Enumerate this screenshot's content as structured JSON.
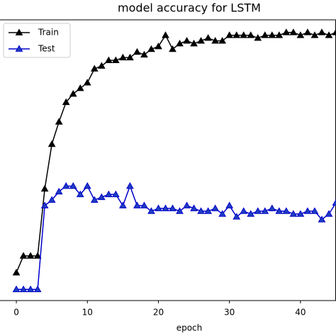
{
  "chart_data": {
    "type": "line",
    "title": "model accuracy for LSTM",
    "x_label": "epoch",
    "x": [
      0,
      1,
      2,
      3,
      4,
      5,
      6,
      7,
      8,
      9,
      10,
      11,
      12,
      13,
      14,
      15,
      16,
      17,
      18,
      19,
      20,
      21,
      22,
      23,
      24,
      25,
      26,
      27,
      28,
      29,
      30,
      31,
      32,
      33,
      34,
      35,
      36,
      37,
      38,
      39,
      40,
      41,
      42,
      43,
      44,
      45
    ],
    "series": [
      {
        "name": "Train",
        "color": "#000000",
        "values": [
          0.1,
          0.16,
          0.16,
          0.16,
          0.4,
          0.56,
          0.64,
          0.71,
          0.74,
          0.76,
          0.78,
          0.83,
          0.84,
          0.86,
          0.86,
          0.87,
          0.87,
          0.89,
          0.88,
          0.9,
          0.91,
          0.95,
          0.9,
          0.92,
          0.93,
          0.92,
          0.93,
          0.94,
          0.93,
          0.93,
          0.95,
          0.95,
          0.95,
          0.95,
          0.94,
          0.95,
          0.95,
          0.95,
          0.96,
          0.96,
          0.95,
          0.96,
          0.95,
          0.96,
          0.95,
          0.96
        ]
      },
      {
        "name": "Test",
        "color": "#0000cc",
        "values": [
          0.04,
          0.04,
          0.04,
          0.04,
          0.34,
          0.36,
          0.39,
          0.41,
          0.41,
          0.38,
          0.41,
          0.36,
          0.37,
          0.38,
          0.38,
          0.34,
          0.41,
          0.34,
          0.34,
          0.32,
          0.33,
          0.33,
          0.33,
          0.32,
          0.34,
          0.33,
          0.32,
          0.32,
          0.33,
          0.31,
          0.34,
          0.3,
          0.32,
          0.31,
          0.32,
          0.32,
          0.33,
          0.32,
          0.32,
          0.31,
          0.31,
          0.32,
          0.32,
          0.29,
          0.31,
          0.35
        ]
      }
    ],
    "xlim": [
      -2.3,
      45
    ],
    "xticks": [
      0,
      10,
      20,
      30,
      40
    ],
    "ylim": [
      0,
      1
    ],
    "legend": "upper left",
    "marker": "triangle"
  }
}
